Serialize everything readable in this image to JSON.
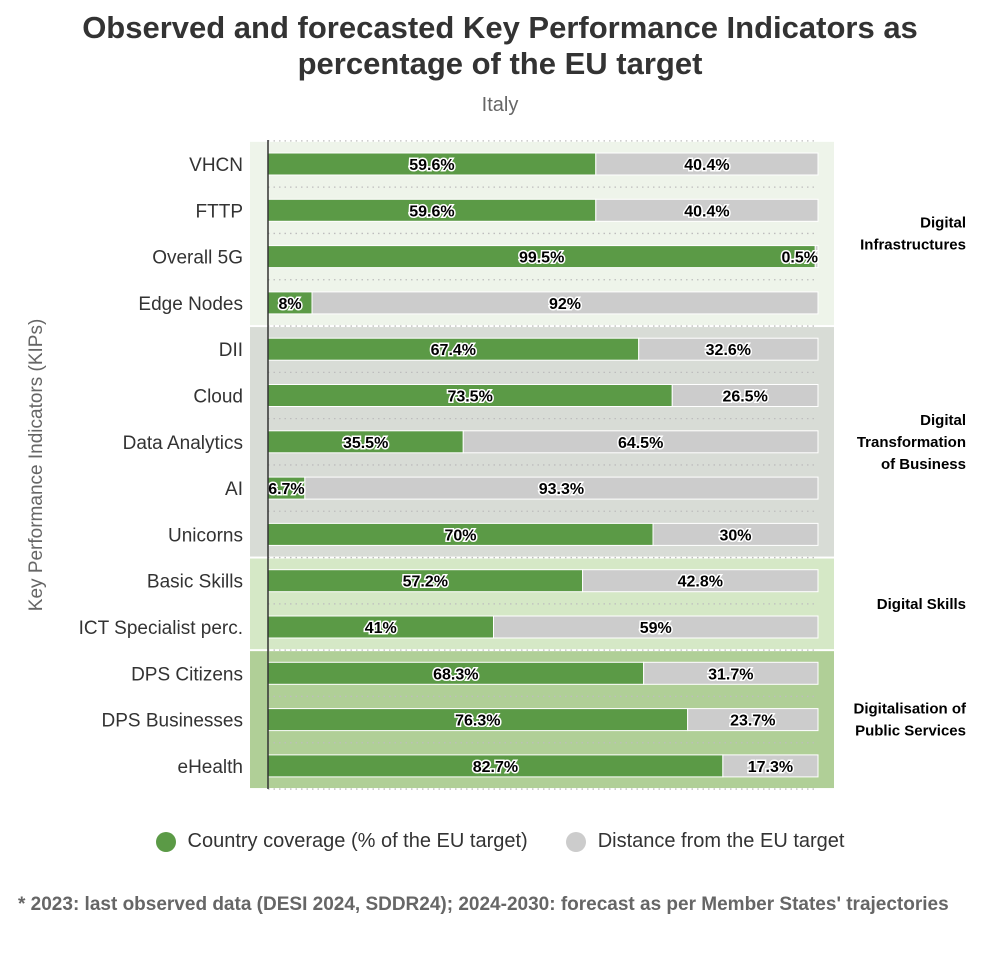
{
  "title": "Observed and forecasted Key Performance Indicators as percentage of the EU target",
  "subtitle": "Italy",
  "footnote": "* 2023: last observed data (DESI 2024, SDDR24); 2024-2030: forecast as per Member States' trajectories",
  "colors": {
    "coverage": "#5b9a46",
    "distance": "#cccccc"
  },
  "chart_data": {
    "type": "bar",
    "orientation": "horizontal",
    "stacked": true,
    "ylabel": "Key Performance Indicators (KIPs)",
    "xlim": [
      0,
      100
    ],
    "categories": [
      "VHCN",
      "FTTP",
      "Overall 5G",
      "Edge Nodes",
      "DII",
      "Cloud",
      "Data Analytics",
      "AI",
      "Unicorns",
      "Basic Skills",
      "ICT Specialist perc.",
      "DPS Citizens",
      "DPS Businesses",
      "eHealth"
    ],
    "series": [
      {
        "name": "Country coverage (% of the EU target)",
        "color": "#5b9a46",
        "values": [
          59.6,
          59.6,
          99.5,
          8,
          67.4,
          73.5,
          35.5,
          6.7,
          70,
          57.2,
          41,
          68.3,
          76.3,
          82.7
        ],
        "labels": [
          "59.6%",
          "59.6%",
          "99.5%",
          "8%",
          "67.4%",
          "73.5%",
          "35.5%",
          "6.7%",
          "70%",
          "57.2%",
          "41%",
          "68.3%",
          "76.3%",
          "82.7%"
        ]
      },
      {
        "name": "Distance from the EU target",
        "color": "#cccccc",
        "values": [
          40.4,
          40.4,
          0.5,
          92,
          32.6,
          26.5,
          64.5,
          93.3,
          30,
          42.8,
          59,
          31.7,
          23.7,
          17.3
        ],
        "labels": [
          "40.4%",
          "40.4%",
          "0.5%",
          "92%",
          "32.6%",
          "26.5%",
          "64.5%",
          "93.3%",
          "30%",
          "42.8%",
          "59%",
          "31.7%",
          "23.7%",
          "17.3%"
        ]
      }
    ],
    "groups": [
      {
        "name": "Digital Infrastructures",
        "lines": [
          "Digital",
          "Infrastructures"
        ],
        "start": 0,
        "end": 3,
        "color": "#eef4ea"
      },
      {
        "name": "Digital Transformation of Business",
        "lines": [
          "Digital",
          "Transformation",
          "of Business"
        ],
        "start": 4,
        "end": 8,
        "color": "#d8dcd6"
      },
      {
        "name": "Digital Skills",
        "lines": [
          "Digital Skills"
        ],
        "start": 9,
        "end": 10,
        "color": "#d5e8c6"
      },
      {
        "name": "Digitalisation of Public Services",
        "lines": [
          "Digitalisation of",
          "Public Services"
        ],
        "start": 11,
        "end": 13,
        "color": "#b0cf97"
      }
    ],
    "legend": {
      "position": "bottom",
      "items": [
        "Country coverage (% of the EU target)",
        "Distance from the EU target"
      ]
    }
  }
}
